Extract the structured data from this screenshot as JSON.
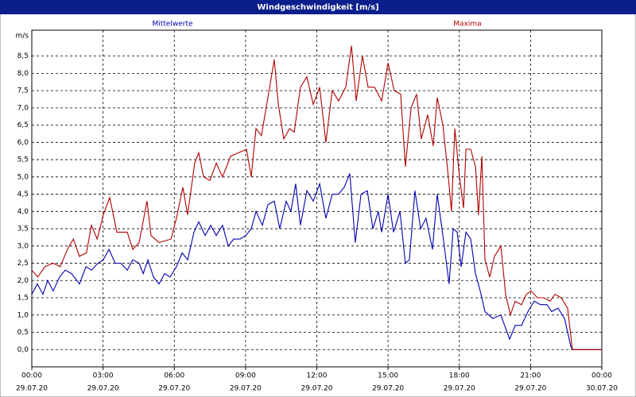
{
  "chart_data": {
    "type": "line",
    "title": "Windgeschwindigkeit [m/s]",
    "y_label": "m/s",
    "grid": true,
    "xlim": [
      0,
      24
    ],
    "ylim": [
      -0.5,
      9.25
    ],
    "xticks": [
      {
        "value": 0,
        "label": "00:00"
      },
      {
        "value": 3,
        "label": "03:00"
      },
      {
        "value": 6,
        "label": "06:00"
      },
      {
        "value": 9,
        "label": "09:00"
      },
      {
        "value": 12,
        "label": "12:00"
      },
      {
        "value": 15,
        "label": "15:00"
      },
      {
        "value": 18,
        "label": "18:00"
      },
      {
        "value": 21,
        "label": "21:00"
      },
      {
        "value": 24,
        "label": "00:00"
      }
    ],
    "xtick_dates": [
      "29.07.20",
      "29.07.20",
      "29.07.20",
      "29.07.20",
      "29.07.20",
      "29.07.20",
      "29.07.20",
      "29.07.20",
      "30.07.20"
    ],
    "yticks": [
      {
        "value": 0,
        "label": "0,0"
      },
      {
        "value": 0.5,
        "label": "0,5"
      },
      {
        "value": 1,
        "label": "1,0"
      },
      {
        "value": 1.5,
        "label": "1,5"
      },
      {
        "value": 2,
        "label": "2,0"
      },
      {
        "value": 2.5,
        "label": "2,5"
      },
      {
        "value": 3,
        "label": "3,0"
      },
      {
        "value": 3.5,
        "label": "3,5"
      },
      {
        "value": 4,
        "label": "4,0"
      },
      {
        "value": 4.5,
        "label": "4,5"
      },
      {
        "value": 5,
        "label": "5,0"
      },
      {
        "value": 5.5,
        "label": "5,5"
      },
      {
        "value": 6,
        "label": "6,0"
      },
      {
        "value": 6.5,
        "label": "6,5"
      },
      {
        "value": 7,
        "label": "7,0"
      },
      {
        "value": 7.5,
        "label": "7,5"
      },
      {
        "value": 8,
        "label": "8,0"
      },
      {
        "value": 8.5,
        "label": "8,5"
      }
    ],
    "series": [
      {
        "name": "Mittelwerte",
        "color": "#0000b0",
        "x": [
          0,
          0.23,
          0.47,
          0.67,
          0.9,
          1.17,
          1.41,
          1.67,
          2.01,
          2.28,
          2.51,
          2.78,
          3.01,
          3.25,
          3.51,
          3.75,
          4.02,
          4.25,
          4.52,
          4.69,
          4.89,
          5.12,
          5.36,
          5.59,
          5.82,
          6.09,
          6.33,
          6.56,
          6.83,
          7.03,
          7.3,
          7.53,
          7.77,
          8.03,
          8.27,
          8.5,
          8.77,
          9.0,
          9.24,
          9.44,
          9.71,
          9.94,
          10.21,
          10.44,
          10.71,
          10.91,
          11.11,
          11.31,
          11.58,
          11.85,
          12.12,
          12.38,
          12.65,
          12.92,
          13.15,
          13.39,
          13.62,
          13.86,
          14.13,
          14.36,
          14.59,
          14.73,
          15.0,
          15.23,
          15.5,
          15.73,
          15.9,
          16.13,
          16.37,
          16.6,
          16.87,
          17.07,
          17.31,
          17.57,
          17.74,
          17.91,
          18.08,
          18.28,
          18.48,
          18.68,
          18.88,
          19.08,
          19.41,
          19.75,
          20.12,
          20.35,
          20.62,
          20.89,
          21.15,
          21.42,
          21.69,
          21.89,
          22.16,
          22.43,
          22.69,
          22.76,
          24
        ],
        "values": [
          1.6,
          1.9,
          1.6,
          2.0,
          1.7,
          2.1,
          2.3,
          2.2,
          1.9,
          2.4,
          2.3,
          2.5,
          2.6,
          2.9,
          2.5,
          2.5,
          2.3,
          2.6,
          2.5,
          2.2,
          2.6,
          2.1,
          1.9,
          2.2,
          2.1,
          2.4,
          2.8,
          2.6,
          3.4,
          3.7,
          3.3,
          3.6,
          3.3,
          3.6,
          3.0,
          3.2,
          3.2,
          3.3,
          3.5,
          4.0,
          3.6,
          4.2,
          4.3,
          3.5,
          4.3,
          4.0,
          4.8,
          3.6,
          4.6,
          4.3,
          4.8,
          3.8,
          4.5,
          4.5,
          4.7,
          5.1,
          3.1,
          4.5,
          4.6,
          3.5,
          4.0,
          3.4,
          4.5,
          3.4,
          4.0,
          2.5,
          2.6,
          4.6,
          3.5,
          3.8,
          2.9,
          4.5,
          3.3,
          1.9,
          3.5,
          3.4,
          2.4,
          3.4,
          3.2,
          2.2,
          1.7,
          1.1,
          0.9,
          1.0,
          0.3,
          0.7,
          0.7,
          1.1,
          1.4,
          1.3,
          1.3,
          1.1,
          1.2,
          0.9,
          0.1,
          0.0,
          0.0
        ]
      },
      {
        "name": "Maxima",
        "color": "#b00000",
        "x": [
          0,
          0.25,
          0.55,
          0.9,
          1.2,
          1.5,
          1.75,
          2.0,
          2.3,
          2.51,
          2.75,
          3.01,
          3.28,
          3.58,
          4.02,
          4.25,
          4.52,
          4.85,
          5.02,
          5.36,
          5.86,
          6.09,
          6.36,
          6.56,
          6.86,
          7.03,
          7.23,
          7.5,
          7.77,
          8.03,
          8.37,
          8.7,
          9.04,
          9.24,
          9.44,
          9.67,
          9.94,
          10.21,
          10.38,
          10.61,
          10.85,
          11.05,
          11.31,
          11.58,
          11.85,
          12.12,
          12.38,
          12.65,
          12.92,
          13.22,
          13.46,
          13.66,
          13.92,
          14.16,
          14.43,
          14.73,
          15.0,
          15.26,
          15.53,
          15.73,
          15.97,
          16.2,
          16.4,
          16.67,
          16.9,
          17.07,
          17.31,
          17.51,
          17.67,
          17.81,
          18.01,
          18.18,
          18.28,
          18.48,
          18.68,
          18.81,
          18.95,
          19.08,
          19.28,
          19.48,
          19.75,
          19.95,
          20.15,
          20.35,
          20.62,
          20.82,
          21.02,
          21.29,
          21.56,
          21.82,
          22.03,
          22.29,
          22.56,
          22.76,
          24
        ],
        "values": [
          2.3,
          2.1,
          2.4,
          2.5,
          2.4,
          2.9,
          3.2,
          2.7,
          2.8,
          3.6,
          3.2,
          3.9,
          4.4,
          3.4,
          3.4,
          2.9,
          3.1,
          4.3,
          3.3,
          3.1,
          3.2,
          3.8,
          4.7,
          3.9,
          5.4,
          5.7,
          5.0,
          4.9,
          5.4,
          5.0,
          5.6,
          5.7,
          5.8,
          5.0,
          6.4,
          6.2,
          7.3,
          8.4,
          7.1,
          6.1,
          6.4,
          6.3,
          7.6,
          7.9,
          7.1,
          7.6,
          6.0,
          7.5,
          7.2,
          7.6,
          8.8,
          7.2,
          8.5,
          7.6,
          7.6,
          7.2,
          8.3,
          7.5,
          7.4,
          5.3,
          7.0,
          7.4,
          6.1,
          6.8,
          5.9,
          7.3,
          6.5,
          5.2,
          4.0,
          6.4,
          5.0,
          4.1,
          5.8,
          5.8,
          5.3,
          3.9,
          5.6,
          2.6,
          2.1,
          2.7,
          3.0,
          1.6,
          1.0,
          1.4,
          1.3,
          1.6,
          1.7,
          1.5,
          1.5,
          1.4,
          1.6,
          1.5,
          1.2,
          0.0,
          0.0
        ]
      }
    ]
  }
}
